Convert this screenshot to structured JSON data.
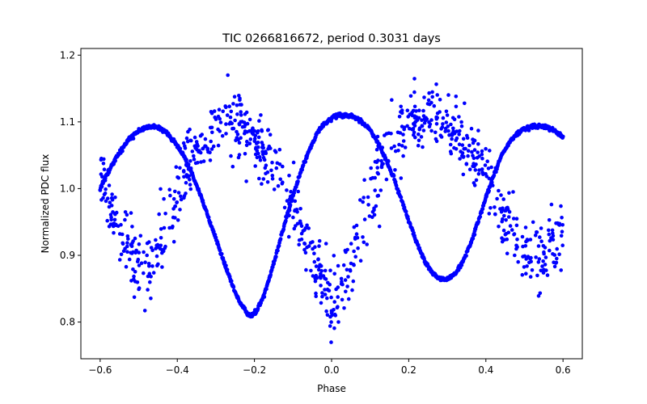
{
  "chart_data": {
    "type": "scatter",
    "title": "TIC 0266816672, period 0.3031 days",
    "xlabel": "Phase",
    "ylabel": "Normalized PDC flux",
    "xlim": [
      -0.65,
      0.65
    ],
    "ylim": [
      0.745,
      1.21
    ],
    "grid": false,
    "legend": "none",
    "x_ticks": [
      {
        "value": -0.6,
        "label": "−0.6"
      },
      {
        "value": -0.4,
        "label": "−0.4"
      },
      {
        "value": -0.2,
        "label": "−0.2"
      },
      {
        "value": 0.0,
        "label": "0.0"
      },
      {
        "value": 0.2,
        "label": "0.2"
      },
      {
        "value": 0.4,
        "label": "0.4"
      },
      {
        "value": 0.6,
        "label": "0.6"
      }
    ],
    "y_ticks": [
      {
        "value": 0.8,
        "label": "0.8"
      },
      {
        "value": 0.9,
        "label": "0.9"
      },
      {
        "value": 1.0,
        "label": "1.0"
      },
      {
        "value": 1.1,
        "label": "1.1"
      },
      {
        "value": 1.2,
        "label": "1.2"
      }
    ],
    "marker_color": "#0000ff",
    "series": [
      {
        "role": "phase-folded-model",
        "points": [
          [
            -0.6,
            1.0
          ],
          [
            -0.58,
            1.024
          ],
          [
            -0.56,
            1.045
          ],
          [
            -0.54,
            1.062
          ],
          [
            -0.52,
            1.077
          ],
          [
            -0.5,
            1.087
          ],
          [
            -0.48,
            1.092
          ],
          [
            -0.46,
            1.093
          ],
          [
            -0.44,
            1.089
          ],
          [
            -0.42,
            1.079
          ],
          [
            -0.4,
            1.064
          ],
          [
            -0.38,
            1.045
          ],
          [
            -0.36,
            1.02
          ],
          [
            -0.34,
            0.99
          ],
          [
            -0.32,
            0.958
          ],
          [
            -0.3,
            0.925
          ],
          [
            -0.28,
            0.892
          ],
          [
            -0.26,
            0.86
          ],
          [
            -0.24,
            0.832
          ],
          [
            -0.22,
            0.814
          ],
          [
            -0.21,
            0.81
          ],
          [
            -0.2,
            0.812
          ],
          [
            -0.18,
            0.832
          ],
          [
            -0.16,
            0.868
          ],
          [
            -0.14,
            0.91
          ],
          [
            -0.12,
            0.951
          ],
          [
            -0.1,
            0.99
          ],
          [
            -0.08,
            1.025
          ],
          [
            -0.06,
            1.055
          ],
          [
            -0.04,
            1.08
          ],
          [
            -0.02,
            1.097
          ],
          [
            0.0,
            1.106
          ],
          [
            0.02,
            1.11
          ],
          [
            0.04,
            1.11
          ],
          [
            0.06,
            1.107
          ],
          [
            0.08,
            1.1
          ],
          [
            0.1,
            1.088
          ],
          [
            0.12,
            1.069
          ],
          [
            0.14,
            1.045
          ],
          [
            0.16,
            1.017
          ],
          [
            0.18,
            0.985
          ],
          [
            0.2,
            0.952
          ],
          [
            0.22,
            0.92
          ],
          [
            0.24,
            0.893
          ],
          [
            0.26,
            0.874
          ],
          [
            0.28,
            0.865
          ],
          [
            0.3,
            0.864
          ],
          [
            0.32,
            0.872
          ],
          [
            0.34,
            0.89
          ],
          [
            0.36,
            0.917
          ],
          [
            0.38,
            0.95
          ],
          [
            0.4,
            0.986
          ],
          [
            0.42,
            1.02
          ],
          [
            0.44,
            1.048
          ],
          [
            0.46,
            1.068
          ],
          [
            0.48,
            1.082
          ],
          [
            0.5,
            1.09
          ],
          [
            0.52,
            1.093
          ],
          [
            0.54,
            1.093
          ],
          [
            0.56,
            1.091
          ],
          [
            0.58,
            1.086
          ],
          [
            0.6,
            1.077
          ]
        ]
      },
      {
        "role": "noisy-observations",
        "trend_points": [
          [
            -0.6,
            1.02
          ],
          [
            -0.57,
            0.965
          ],
          [
            -0.54,
            0.93
          ],
          [
            -0.52,
            0.905
          ],
          [
            -0.5,
            0.885
          ],
          [
            -0.48,
            0.88
          ],
          [
            -0.46,
            0.895
          ],
          [
            -0.44,
            0.925
          ],
          [
            -0.42,
            0.955
          ],
          [
            -0.4,
            0.99
          ],
          [
            -0.38,
            1.03
          ],
          [
            -0.35,
            1.06
          ],
          [
            -0.32,
            1.08
          ],
          [
            -0.28,
            1.095
          ],
          [
            -0.25,
            1.1
          ],
          [
            -0.22,
            1.085
          ],
          [
            -0.19,
            1.065
          ],
          [
            -0.16,
            1.04
          ],
          [
            -0.13,
            1.01
          ],
          [
            -0.1,
            0.98
          ],
          [
            -0.08,
            0.955
          ],
          [
            -0.06,
            0.92
          ],
          [
            -0.04,
            0.88
          ],
          [
            -0.02,
            0.845
          ],
          [
            0.0,
            0.83
          ],
          [
            0.02,
            0.835
          ],
          [
            0.04,
            0.87
          ],
          [
            0.06,
            0.91
          ],
          [
            0.08,
            0.95
          ],
          [
            0.1,
            0.99
          ],
          [
            0.12,
            1.02
          ],
          [
            0.14,
            1.05
          ],
          [
            0.16,
            1.07
          ],
          [
            0.18,
            1.085
          ],
          [
            0.2,
            1.1
          ],
          [
            0.24,
            1.11
          ],
          [
            0.28,
            1.1
          ],
          [
            0.32,
            1.08
          ],
          [
            0.36,
            1.055
          ],
          [
            0.4,
            1.02
          ],
          [
            0.43,
            0.98
          ],
          [
            0.45,
            0.95
          ],
          [
            0.47,
            0.93
          ],
          [
            0.5,
            0.905
          ],
          [
            0.52,
            0.89
          ],
          [
            0.54,
            0.885
          ],
          [
            0.56,
            0.9
          ],
          [
            0.58,
            0.92
          ],
          [
            0.6,
            0.96
          ]
        ],
        "scatter_sigma": 0.025,
        "point_count": 900
      }
    ]
  }
}
